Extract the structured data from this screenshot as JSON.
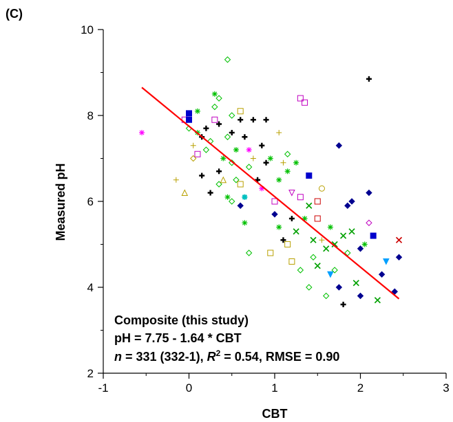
{
  "panel_label": "(C)",
  "colors": {
    "fit_line": "#ff0000",
    "axis": "#000000",
    "marker_palette": [
      "#000000",
      "#00c000",
      "#22aa22",
      "#c000c0",
      "#ff00ff",
      "#b8a000",
      "#000090",
      "#00a0ff",
      "#00c0c0",
      "#cc0000",
      "#d06000"
    ]
  },
  "chart_data": {
    "type": "scatter",
    "xlabel": "CBT",
    "ylabel": "Measured pH",
    "xlim": [
      -1,
      3
    ],
    "ylim": [
      2,
      10
    ],
    "xticks": [
      -1,
      0,
      1,
      2,
      3
    ],
    "yticks": [
      2,
      4,
      6,
      8,
      10
    ],
    "xtick_labels": [
      "-1",
      "0",
      "1",
      "2",
      "3"
    ],
    "ytick_labels": [
      "2",
      "4",
      "6",
      "8",
      "10"
    ],
    "grid": false,
    "fit": {
      "intercept": 7.75,
      "slope": -1.64,
      "x_range": [
        -0.55,
        2.45
      ]
    },
    "annotation": {
      "line1": "Composite (this study)",
      "line2": "pH = 7.75 - 1.64 * CBT",
      "line3_n": "n",
      "line3_a": " = 331 (332-1), ",
      "line3_R": "R",
      "line3_sup": "2",
      "line3_b": " = 0.54, RMSE = 0.90"
    },
    "points": [
      [
        -0.55,
        7.6,
        "asterisk",
        "#ff00ff"
      ],
      [
        -0.15,
        6.5,
        "plus",
        "#b8a000"
      ],
      [
        -0.05,
        6.2,
        "triangle",
        "#b8a000"
      ],
      [
        -0.05,
        7.9,
        "square",
        "#c000c0"
      ],
      [
        0.0,
        8.05,
        "filled-square",
        "#0000cc"
      ],
      [
        0.0,
        7.9,
        "filled-square",
        "#0000cc"
      ],
      [
        0.0,
        7.7,
        "diamond",
        "#00c000"
      ],
      [
        0.05,
        7.3,
        "plus",
        "#b8a000"
      ],
      [
        0.1,
        7.6,
        "asterisk",
        "#00c000"
      ],
      [
        0.1,
        7.1,
        "square",
        "#c000c0"
      ],
      [
        0.05,
        7.0,
        "diamond",
        "#b8a000"
      ],
      [
        0.1,
        8.1,
        "asterisk",
        "#00c000"
      ],
      [
        0.15,
        7.5,
        "cross",
        "#000000"
      ],
      [
        0.15,
        6.6,
        "cross",
        "#000000"
      ],
      [
        0.2,
        7.7,
        "cross",
        "#000000"
      ],
      [
        0.2,
        7.2,
        "diamond",
        "#00c000"
      ],
      [
        0.25,
        7.4,
        "diamond",
        "#00c000"
      ],
      [
        0.25,
        6.2,
        "cross",
        "#000000"
      ],
      [
        0.3,
        7.9,
        "square",
        "#c000c0"
      ],
      [
        0.3,
        8.2,
        "diamond",
        "#00c000"
      ],
      [
        0.3,
        8.5,
        "asterisk",
        "#00c000"
      ],
      [
        0.35,
        8.4,
        "diamond",
        "#00c000"
      ],
      [
        0.35,
        7.8,
        "cross",
        "#000000"
      ],
      [
        0.35,
        6.7,
        "cross",
        "#000000"
      ],
      [
        0.35,
        6.4,
        "diamond",
        "#00c000"
      ],
      [
        0.4,
        7.0,
        "asterisk",
        "#00c000"
      ],
      [
        0.4,
        6.5,
        "triangle",
        "#b8a000"
      ],
      [
        0.45,
        9.3,
        "diamond",
        "#00c000"
      ],
      [
        0.45,
        7.5,
        "diamond",
        "#00c000"
      ],
      [
        0.45,
        6.1,
        "asterisk",
        "#00c000"
      ],
      [
        0.5,
        8.0,
        "diamond",
        "#00c000"
      ],
      [
        0.5,
        7.6,
        "cross",
        "#000000"
      ],
      [
        0.5,
        6.9,
        "diamond",
        "#00c000"
      ],
      [
        0.5,
        6.0,
        "diamond",
        "#00c000"
      ],
      [
        0.55,
        7.2,
        "asterisk",
        "#00c000"
      ],
      [
        0.55,
        6.5,
        "diamond",
        "#00c000"
      ],
      [
        0.6,
        8.1,
        "square",
        "#b8a000"
      ],
      [
        0.6,
        7.9,
        "cross",
        "#000000"
      ],
      [
        0.6,
        6.4,
        "square",
        "#b8a000"
      ],
      [
        0.6,
        5.9,
        "filled-diamond",
        "#000090"
      ],
      [
        0.65,
        6.1,
        "star",
        "#00c0c0"
      ],
      [
        0.65,
        5.5,
        "asterisk",
        "#00c000"
      ],
      [
        0.65,
        7.5,
        "cross",
        "#000000"
      ],
      [
        0.7,
        7.2,
        "asterisk",
        "#ff00ff"
      ],
      [
        0.7,
        6.8,
        "diamond",
        "#00c000"
      ],
      [
        0.7,
        4.8,
        "diamond",
        "#00c000"
      ],
      [
        0.75,
        7.9,
        "cross",
        "#000000"
      ],
      [
        0.75,
        7.0,
        "plus",
        "#b8a000"
      ],
      [
        0.8,
        6.5,
        "cross",
        "#000000"
      ],
      [
        0.85,
        6.3,
        "asterisk",
        "#ff00ff"
      ],
      [
        0.85,
        7.3,
        "cross",
        "#000000"
      ],
      [
        0.9,
        7.9,
        "cross",
        "#000000"
      ],
      [
        0.9,
        6.9,
        "cross",
        "#000000"
      ],
      [
        0.95,
        7.0,
        "asterisk",
        "#00c000"
      ],
      [
        0.95,
        4.8,
        "square",
        "#b8a000"
      ],
      [
        1.0,
        6.0,
        "square",
        "#c000c0"
      ],
      [
        1.0,
        5.7,
        "filled-diamond",
        "#000090"
      ],
      [
        1.05,
        7.6,
        "plus",
        "#b8a000"
      ],
      [
        1.05,
        6.5,
        "asterisk",
        "#00c000"
      ],
      [
        1.05,
        5.4,
        "asterisk",
        "#00c000"
      ],
      [
        1.1,
        6.9,
        "plus",
        "#b8a000"
      ],
      [
        1.1,
        5.1,
        "cross",
        "#000000"
      ],
      [
        1.15,
        7.1,
        "diamond",
        "#00c000"
      ],
      [
        1.15,
        6.7,
        "asterisk",
        "#00c000"
      ],
      [
        1.15,
        5.0,
        "square",
        "#b8a000"
      ],
      [
        1.2,
        6.2,
        "triangle-down",
        "#c000c0"
      ],
      [
        1.2,
        5.6,
        "cross",
        "#000000"
      ],
      [
        1.2,
        4.6,
        "square",
        "#b8a000"
      ],
      [
        1.25,
        6.9,
        "asterisk",
        "#00c000"
      ],
      [
        1.25,
        5.3,
        "x",
        "#00a000"
      ],
      [
        1.3,
        8.4,
        "square",
        "#c000c0"
      ],
      [
        1.3,
        6.1,
        "square",
        "#c000c0"
      ],
      [
        1.3,
        4.4,
        "diamond",
        "#00c000"
      ],
      [
        1.35,
        8.3,
        "square",
        "#c000c0"
      ],
      [
        1.35,
        5.6,
        "asterisk",
        "#00c000"
      ],
      [
        1.4,
        6.6,
        "filled-square",
        "#0000cc"
      ],
      [
        1.4,
        5.9,
        "x",
        "#00a000"
      ],
      [
        1.4,
        4.0,
        "diamond",
        "#00c000"
      ],
      [
        1.45,
        5.1,
        "x",
        "#00a000"
      ],
      [
        1.45,
        4.7,
        "diamond",
        "#00c000"
      ],
      [
        1.5,
        6.0,
        "square",
        "#cc0000"
      ],
      [
        1.5,
        5.6,
        "square",
        "#cc0000"
      ],
      [
        1.5,
        4.5,
        "x",
        "#00a000"
      ],
      [
        1.55,
        6.3,
        "circle",
        "#b8a000"
      ],
      [
        1.55,
        5.1,
        "plus",
        "#b8a000"
      ],
      [
        1.6,
        4.9,
        "x",
        "#00a000"
      ],
      [
        1.6,
        3.8,
        "diamond",
        "#00c000"
      ],
      [
        1.65,
        5.4,
        "asterisk",
        "#00c000"
      ],
      [
        1.65,
        4.3,
        "triangle-down",
        "#00a0ff"
      ],
      [
        1.7,
        5.0,
        "x",
        "#00a000"
      ],
      [
        1.7,
        4.4,
        "diamond",
        "#00c000"
      ],
      [
        1.75,
        7.3,
        "filled-diamond",
        "#000090"
      ],
      [
        1.75,
        4.0,
        "filled-diamond",
        "#000090"
      ],
      [
        1.8,
        5.2,
        "x",
        "#00a000"
      ],
      [
        1.8,
        3.6,
        "cross",
        "#000000"
      ],
      [
        1.85,
        5.9,
        "filled-diamond",
        "#000090"
      ],
      [
        1.85,
        4.8,
        "diamond",
        "#00c000"
      ],
      [
        1.9,
        6.0,
        "filled-diamond",
        "#000090"
      ],
      [
        1.9,
        5.3,
        "x",
        "#00a000"
      ],
      [
        1.95,
        4.1,
        "x",
        "#00a000"
      ],
      [
        2.0,
        4.9,
        "filled-diamond",
        "#000090"
      ],
      [
        2.0,
        3.8,
        "filled-diamond",
        "#000090"
      ],
      [
        2.05,
        5.0,
        "asterisk",
        "#00c000"
      ],
      [
        2.1,
        6.2,
        "filled-diamond",
        "#000090"
      ],
      [
        2.1,
        5.5,
        "diamond",
        "#c000c0"
      ],
      [
        2.1,
        8.85,
        "cross",
        "#000000"
      ],
      [
        2.15,
        5.2,
        "filled-square",
        "#0000cc"
      ],
      [
        2.2,
        3.7,
        "x",
        "#00a000"
      ],
      [
        2.25,
        4.3,
        "filled-diamond",
        "#000090"
      ],
      [
        2.3,
        4.6,
        "triangle-down",
        "#00a0ff"
      ],
      [
        2.4,
        3.9,
        "filled-diamond",
        "#000090"
      ],
      [
        2.45,
        5.1,
        "x",
        "#cc0000"
      ],
      [
        2.45,
        4.7,
        "filled-diamond",
        "#000090"
      ]
    ]
  }
}
